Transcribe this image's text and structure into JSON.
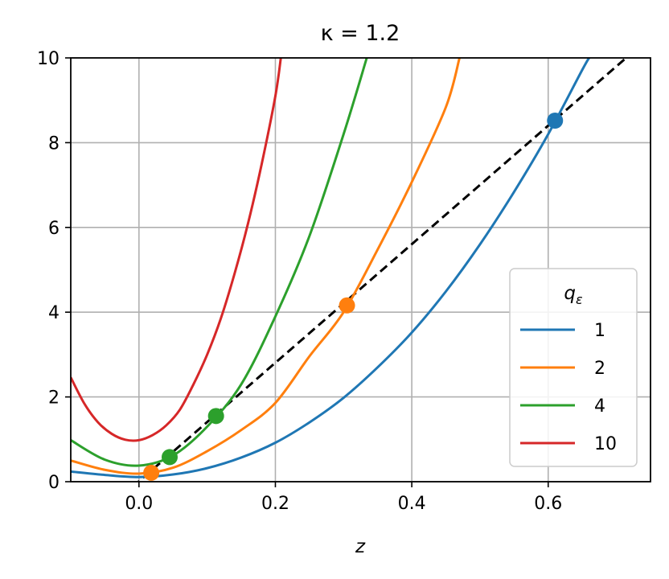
{
  "chart_data": {
    "type": "line",
    "title": "κ = 1.2",
    "xlabel": "z",
    "ylabel": "",
    "xlim": [
      -0.1,
      0.75
    ],
    "ylim": [
      0,
      10
    ],
    "x_ticks": [
      "0.0",
      "0.2",
      "0.4",
      "0.6"
    ],
    "x_tick_values": [
      0.0,
      0.2,
      0.4,
      0.6
    ],
    "y_ticks": [
      "0",
      "2",
      "4",
      "6",
      "8",
      "10"
    ],
    "y_tick_values": [
      0,
      2,
      4,
      6,
      8,
      10
    ],
    "grid": true,
    "legend": {
      "title": "q",
      "title_subscript": "ε",
      "position": "lower-right"
    },
    "reference_line": {
      "style": "dashed",
      "color": "#000000",
      "x": [
        -0.1,
        0.75
      ],
      "y": [
        -1.39,
        10.5
      ]
    },
    "series": [
      {
        "name": "1",
        "color": "#1f77b4",
        "x": [
          -0.1,
          -0.05,
          0.0,
          0.05,
          0.1,
          0.15,
          0.2,
          0.25,
          0.3,
          0.35,
          0.4,
          0.45,
          0.5,
          0.55,
          0.6,
          0.65,
          0.66
        ],
        "y": [
          0.24,
          0.16,
          0.11,
          0.17,
          0.32,
          0.57,
          0.92,
          1.4,
          1.98,
          2.7,
          3.52,
          4.49,
          5.6,
          6.84,
          8.2,
          9.72,
          10.0
        ],
        "marker": {
          "x": 0.61,
          "y": 8.52
        }
      },
      {
        "name": "2",
        "color": "#ff7f0e",
        "x": [
          -0.1,
          -0.05,
          0.0,
          0.05,
          0.1,
          0.15,
          0.2,
          0.25,
          0.3,
          0.35,
          0.4,
          0.45,
          0.47
        ],
        "y": [
          0.5,
          0.28,
          0.19,
          0.33,
          0.72,
          1.22,
          1.86,
          2.96,
          4.0,
          5.48,
          7.07,
          8.84,
          10.0
        ],
        "marker": [
          {
            "x": 0.018,
            "y": 0.21
          },
          {
            "x": 0.305,
            "y": 4.16
          }
        ]
      },
      {
        "name": "4",
        "color": "#2ca02c",
        "x": [
          -0.1,
          -0.05,
          0.0,
          0.05,
          0.1,
          0.15,
          0.2,
          0.25,
          0.3,
          0.334
        ],
        "y": [
          0.98,
          0.52,
          0.38,
          0.62,
          1.3,
          2.3,
          3.9,
          5.8,
          8.2,
          10.0
        ],
        "marker": [
          {
            "x": 0.045,
            "y": 0.58
          },
          {
            "x": 0.113,
            "y": 1.55
          }
        ]
      },
      {
        "name": "10",
        "color": "#d62728",
        "x": [
          -0.1,
          -0.08,
          -0.06,
          -0.04,
          -0.02,
          0.0,
          0.02,
          0.04,
          0.06,
          0.08,
          0.1,
          0.12,
          0.14,
          0.16,
          0.18,
          0.2,
          0.208
        ],
        "y": [
          2.46,
          1.84,
          1.4,
          1.13,
          0.99,
          0.98,
          1.1,
          1.33,
          1.7,
          2.3,
          3.0,
          3.85,
          4.9,
          6.1,
          7.5,
          9.1,
          10.0
        ],
        "marker": []
      }
    ]
  }
}
